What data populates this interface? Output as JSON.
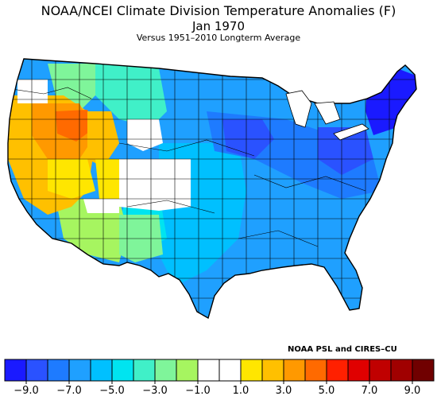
{
  "title": "NOAA/NCEI Climate Division Temperature Anomalies (F)",
  "period": "Jan 1970",
  "subtitle": "Versus 1951–2010 Longterm Average",
  "credit": "NOAA PSL and CIRES–CU",
  "legend": {
    "bins": [
      {
        "color": "#1a1aff"
      },
      {
        "color": "#2a52ff"
      },
      {
        "color": "#1e7bff"
      },
      {
        "color": "#1fa0ff"
      },
      {
        "color": "#00c0ff"
      },
      {
        "color": "#00e4f0"
      },
      {
        "color": "#40f0c8"
      },
      {
        "color": "#7ff59a"
      },
      {
        "color": "#a6f560"
      },
      {
        "color": "#ffffff"
      },
      {
        "color": "#ffffff"
      },
      {
        "color": "#ffe600"
      },
      {
        "color": "#ffc000"
      },
      {
        "color": "#ff9900"
      },
      {
        "color": "#ff6a00"
      },
      {
        "color": "#ff2000"
      },
      {
        "color": "#e00000"
      },
      {
        "color": "#c00000"
      },
      {
        "color": "#a00000"
      },
      {
        "color": "#700000"
      }
    ],
    "ticks": [
      "−9.0",
      "−7.0",
      "−5.0",
      "−3.0",
      "−1.0",
      "1.0",
      "3.0",
      "5.0",
      "7.0",
      "9.0"
    ]
  }
}
